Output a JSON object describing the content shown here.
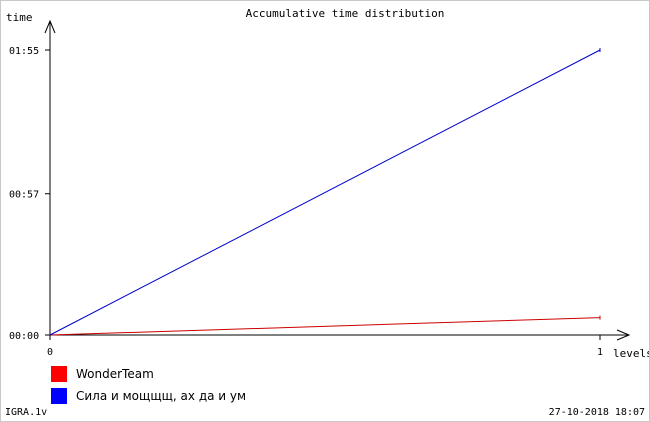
{
  "chart_data": {
    "type": "line",
    "title": "Accumulative time distribution",
    "xlabel": "levels",
    "ylabel": "time",
    "x": [
      0,
      1
    ],
    "xticks": [
      "0",
      "1"
    ],
    "yticks": [
      {
        "value": 0,
        "label": "00:00"
      },
      {
        "value": 57,
        "label": "00:57"
      },
      {
        "value": 115,
        "label": "01:55"
      }
    ],
    "ylim": [
      0,
      115
    ],
    "xlim": [
      0,
      1
    ],
    "grid": false,
    "legend_position": "bottom-left",
    "series": [
      {
        "name": "WonderTeam",
        "color": "#ff0000",
        "line_color": "#cc0000",
        "values": [
          0,
          7
        ]
      },
      {
        "name": "Сила и мощщщ, ах да и ум",
        "color": "#0000ff",
        "line_color": "#0000cc",
        "values": [
          0,
          115
        ]
      }
    ]
  },
  "footer": {
    "left": "IGRA.1v",
    "right": "27-10-2018 18:07"
  }
}
